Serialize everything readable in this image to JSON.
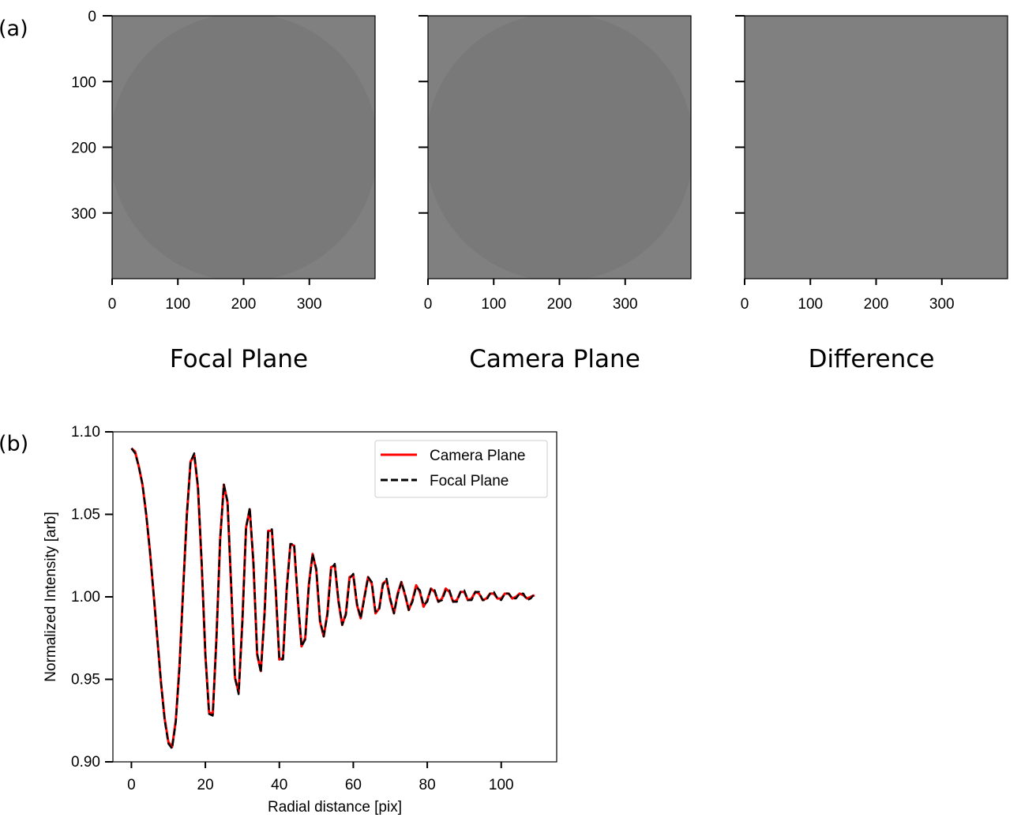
{
  "panel_labels": {
    "a": "(a)",
    "b": "(b)"
  },
  "chart_data": [
    {
      "type": "heatmap",
      "title": "Focal Plane",
      "x_ticks": [
        0,
        100,
        200,
        300
      ],
      "y_ticks": [
        0,
        100,
        200,
        300
      ],
      "xlim": [
        0,
        400
      ],
      "ylim": [
        400,
        0
      ],
      "center": [
        200,
        200
      ],
      "ring_amplitude": 1.0,
      "colormap": "gray",
      "background_color": "#808080"
    },
    {
      "type": "heatmap",
      "title": "Camera Plane",
      "x_ticks": [
        0,
        100,
        200,
        300
      ],
      "y_ticks": [
        0,
        100,
        200,
        300
      ],
      "xlim": [
        0,
        400
      ],
      "ylim": [
        400,
        0
      ],
      "center": [
        200,
        200
      ],
      "ring_amplitude": 1.0,
      "colormap": "gray",
      "background_color": "#808080"
    },
    {
      "type": "heatmap",
      "title": "Difference",
      "x_ticks": [
        0,
        100,
        200,
        300
      ],
      "y_ticks": [
        0,
        100,
        200,
        300
      ],
      "xlim": [
        0,
        400
      ],
      "ylim": [
        400,
        0
      ],
      "center": [
        200,
        200
      ],
      "ring_amplitude": 0.04,
      "colormap": "gray",
      "background_color": "#808080"
    },
    {
      "type": "line",
      "xlabel": "Radial distance [pix]",
      "ylabel": "Normalized Intensity [arb]",
      "xlim": [
        -5,
        115
      ],
      "ylim": [
        0.9,
        1.1
      ],
      "x_ticks": [
        0,
        20,
        40,
        60,
        80,
        100
      ],
      "y_ticks": [
        "0.90",
        "0.95",
        "1.00",
        "1.05",
        "1.10"
      ],
      "grid": false,
      "legend_position": "top-right",
      "series": [
        {
          "name": "Camera Plane",
          "color": "#ff0000",
          "style": "solid",
          "x": [
            0,
            1,
            2,
            3,
            4,
            5,
            6,
            7,
            8,
            9,
            10,
            11,
            12,
            13,
            14,
            15,
            16,
            17,
            18,
            19,
            20,
            21,
            22,
            23,
            24,
            25,
            26,
            27,
            28,
            29,
            30,
            31,
            32,
            33,
            34,
            35,
            36,
            37,
            38,
            39,
            40,
            41,
            42,
            43,
            44,
            45,
            46,
            47,
            48,
            49,
            50,
            51,
            52,
            53,
            54,
            55,
            56,
            57,
            58,
            59,
            60,
            61,
            62,
            63,
            64,
            65,
            66,
            67,
            68,
            69,
            70,
            71,
            72,
            73,
            74,
            75,
            76,
            77,
            78,
            79,
            80,
            81,
            82,
            83,
            84,
            85,
            86,
            87,
            88,
            89,
            90,
            91,
            92,
            93,
            94,
            95,
            96,
            97,
            98,
            99,
            100,
            101,
            102,
            103,
            104,
            105,
            106,
            107,
            108,
            109
          ],
          "y": [
            1.09,
            1.088,
            1.079,
            1.068,
            1.05,
            1.028,
            1.002,
            0.975,
            0.948,
            0.926,
            0.912,
            0.909,
            0.925,
            0.958,
            1.005,
            1.05,
            1.082,
            1.086,
            1.066,
            1.02,
            0.965,
            0.93,
            0.929,
            0.975,
            1.035,
            1.068,
            1.057,
            1.005,
            0.951,
            0.942,
            0.985,
            1.042,
            1.053,
            1.02,
            0.965,
            0.955,
            0.99,
            1.04,
            1.04,
            1.005,
            0.962,
            0.963,
            1.005,
            1.032,
            1.031,
            0.998,
            0.97,
            0.975,
            1.008,
            1.026,
            1.016,
            0.985,
            0.976,
            0.99,
            1.018,
            1.019,
            0.997,
            0.983,
            0.99,
            1.012,
            1.013,
            0.995,
            0.987,
            1.0,
            1.012,
            1.008,
            0.99,
            0.993,
            1.008,
            1.01,
            0.998,
            0.99,
            1.002,
            1.009,
            1.001,
            0.992,
            0.998,
            1.007,
            1.003,
            0.994,
            0.998,
            1.005,
            1.003,
            0.997,
            0.999,
            1.005,
            1.003,
            0.997,
            0.998,
            1.003,
            1.003,
            0.998,
            0.999,
            1.003,
            1.002,
            0.998,
            0.999,
            1.002,
            1.002,
            0.999,
            0.999,
            1.002,
            1.002,
            0.999,
            1.0,
            1.002,
            1.001,
            0.999,
            1.0,
            1.001
          ]
        },
        {
          "name": "Focal Plane",
          "color": "#000000",
          "style": "dashed",
          "x": [
            0,
            1,
            2,
            3,
            4,
            5,
            6,
            7,
            8,
            9,
            10,
            11,
            12,
            13,
            14,
            15,
            16,
            17,
            18,
            19,
            20,
            21,
            22,
            23,
            24,
            25,
            26,
            27,
            28,
            29,
            30,
            31,
            32,
            33,
            34,
            35,
            36,
            37,
            38,
            39,
            40,
            41,
            42,
            43,
            44,
            45,
            46,
            47,
            48,
            49,
            50,
            51,
            52,
            53,
            54,
            55,
            56,
            57,
            58,
            59,
            60,
            61,
            62,
            63,
            64,
            65,
            66,
            67,
            68,
            69,
            70,
            71,
            72,
            73,
            74,
            75,
            76,
            77,
            78,
            79,
            80,
            81,
            82,
            83,
            84,
            85,
            86,
            87,
            88,
            89,
            90,
            91,
            92,
            93,
            94,
            95,
            96,
            97,
            98,
            99,
            100,
            101,
            102,
            103,
            104,
            105,
            106,
            107,
            108,
            109
          ],
          "y": [
            1.09,
            1.087,
            1.079,
            1.068,
            1.05,
            1.028,
            1.002,
            0.975,
            0.948,
            0.925,
            0.911,
            0.908,
            0.924,
            0.957,
            1.004,
            1.05,
            1.082,
            1.087,
            1.067,
            1.021,
            0.965,
            0.929,
            0.928,
            0.975,
            1.035,
            1.068,
            1.058,
            1.006,
            0.951,
            0.941,
            0.984,
            1.042,
            1.054,
            1.021,
            0.966,
            0.954,
            0.989,
            1.04,
            1.041,
            1.006,
            0.962,
            0.962,
            1.004,
            1.032,
            1.032,
            0.999,
            0.97,
            0.974,
            1.007,
            1.026,
            1.017,
            0.986,
            0.976,
            0.989,
            1.017,
            1.02,
            0.998,
            0.983,
            0.989,
            1.011,
            1.014,
            0.996,
            0.987,
            0.999,
            1.012,
            1.009,
            0.991,
            0.992,
            1.007,
            1.011,
            0.999,
            0.99,
            1.001,
            1.009,
            1.002,
            0.992,
            0.997,
            1.006,
            1.004,
            0.995,
            0.997,
            1.005,
            1.004,
            0.997,
            0.998,
            1.004,
            1.004,
            0.997,
            0.997,
            1.003,
            1.004,
            0.998,
            0.998,
            1.003,
            1.003,
            0.998,
            0.998,
            1.002,
            1.003,
            0.999,
            0.998,
            1.002,
            1.002,
            0.999,
            0.999,
            1.002,
            1.002,
            0.998,
            0.999,
            1.002
          ]
        }
      ]
    }
  ]
}
